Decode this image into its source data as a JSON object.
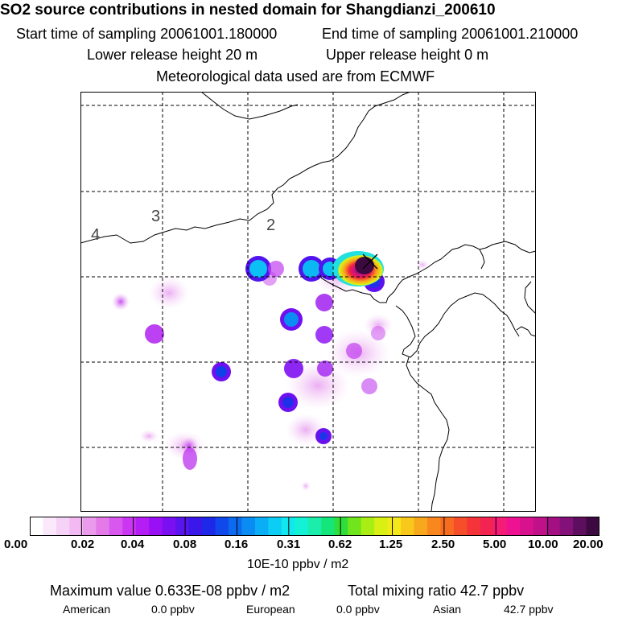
{
  "header": {
    "title": "SO2 source contributions in nested domain for Shangdianzi_200610",
    "start_time": "Start time of sampling 20061001.180000",
    "end_time": "End time of sampling 20061001.210000",
    "lower_release": "Lower release height   20 m",
    "upper_release": "Upper release height    0 m",
    "met_data": "Meteorological data used are from ECMWF"
  },
  "map": {
    "region_labels": [
      "4",
      "3",
      "2"
    ],
    "receptor_marker": "x-marker",
    "gridlines": "dashed"
  },
  "colorbar": {
    "ticks": [
      "0.00",
      "0.02",
      "0.04",
      "0.08",
      "0.16",
      "0.31",
      "0.62",
      "1.25",
      "2.50",
      "5.00",
      "10.00",
      "20.00"
    ],
    "colors": [
      "#ffffff",
      "#fbe8fb",
      "#f7d2f7",
      "#f2b9f2",
      "#eb9beb",
      "#e37ae8",
      "#d857ee",
      "#cb36f2",
      "#b41ef4",
      "#9a10f4",
      "#7a10f2",
      "#5a14ee",
      "#3a18ea",
      "#1e28e8",
      "#1048ec",
      "#0c6aef",
      "#0a8cf2",
      "#0aaef4",
      "#0ccdf4",
      "#0ee8ee",
      "#14f2d6",
      "#1aeeaa",
      "#14e67a",
      "#30de3a",
      "#70e41c",
      "#a8ee14",
      "#d8f014",
      "#f4e81a",
      "#f8c81a",
      "#f8a81c",
      "#f8881e",
      "#f86c22",
      "#f64e2a",
      "#f43438",
      "#f42452",
      "#f41c76",
      "#ee1292",
      "#d8128e",
      "#c0108a",
      "#a41084",
      "#84107a",
      "#5e0e5e",
      "#3c0a40"
    ],
    "unit": "10E-10 ppbv / m2"
  },
  "summary": {
    "max_value": "Maximum value  0.633E-08 ppbv / m2",
    "total_mixing": "Total mixing ratio      42.7 ppbv",
    "american_label": "American",
    "american_value": "0.0 ppbv",
    "european_label": "European",
    "european_value": "0.0 ppbv",
    "asian_label": "Asian",
    "asian_value": "42.7 ppbv"
  }
}
